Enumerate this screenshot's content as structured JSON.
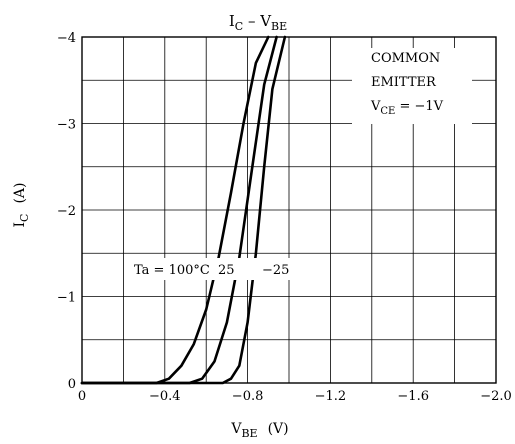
{
  "chart_data": {
    "type": "line",
    "title_main": "I",
    "title_sub1": "C",
    "title_mid": " – V",
    "title_sub2": "BE",
    "xlabel_main": "V",
    "xlabel_sub": "BE",
    "xlabel_unit": "(V)",
    "ylabel_main": "I",
    "ylabel_sub": "C",
    "ylabel_unit": "(A)",
    "xlim": [
      0,
      -2.0
    ],
    "ylim": [
      0,
      -4
    ],
    "x_ticks": [
      {
        "v": 0,
        "label": "0"
      },
      {
        "v": -0.4,
        "label": "−0.4"
      },
      {
        "v": -0.8,
        "label": "−0.8"
      },
      {
        "v": -1.2,
        "label": "−1.2"
      },
      {
        "v": -1.6,
        "label": "−1.6"
      },
      {
        "v": -2.0,
        "label": "−2.0"
      }
    ],
    "y_ticks": [
      {
        "v": 0,
        "label": "0"
      },
      {
        "v": -1,
        "label": "−1"
      },
      {
        "v": -2,
        "label": "−2"
      },
      {
        "v": -3,
        "label": "−3"
      },
      {
        "v": -4,
        "label": "−4"
      }
    ],
    "annotation": {
      "line1": "COMMON",
      "line2": "EMITTER",
      "line3_main": "V",
      "line3_sub": "CE",
      "line3_rest": " = −1V"
    },
    "series_labels": {
      "t1": "Ta = 100°C",
      "t2": "25",
      "t3": "−25"
    },
    "series": [
      {
        "temperature": "100°C",
        "x": [
          -0.36,
          -0.42,
          -0.48,
          -0.54,
          -0.6,
          -0.66,
          -0.72,
          -0.78,
          -0.84,
          -0.9
        ],
        "y": [
          0,
          -0.05,
          -0.2,
          -0.45,
          -0.85,
          -1.45,
          -2.2,
          -3.0,
          -3.7,
          -4.0
        ]
      },
      {
        "temperature": "25°C",
        "x": [
          -0.52,
          -0.58,
          -0.64,
          -0.7,
          -0.76,
          -0.82,
          -0.88,
          -0.94
        ],
        "y": [
          0,
          -0.05,
          -0.25,
          -0.7,
          -1.45,
          -2.45,
          -3.45,
          -4.0
        ]
      },
      {
        "temperature": "−25°C",
        "x": [
          -0.68,
          -0.72,
          -0.76,
          -0.8,
          -0.84,
          -0.88,
          -0.92,
          -0.98
        ],
        "y": [
          0,
          -0.05,
          -0.2,
          -0.7,
          -1.5,
          -2.5,
          -3.4,
          -4.0
        ]
      }
    ]
  }
}
